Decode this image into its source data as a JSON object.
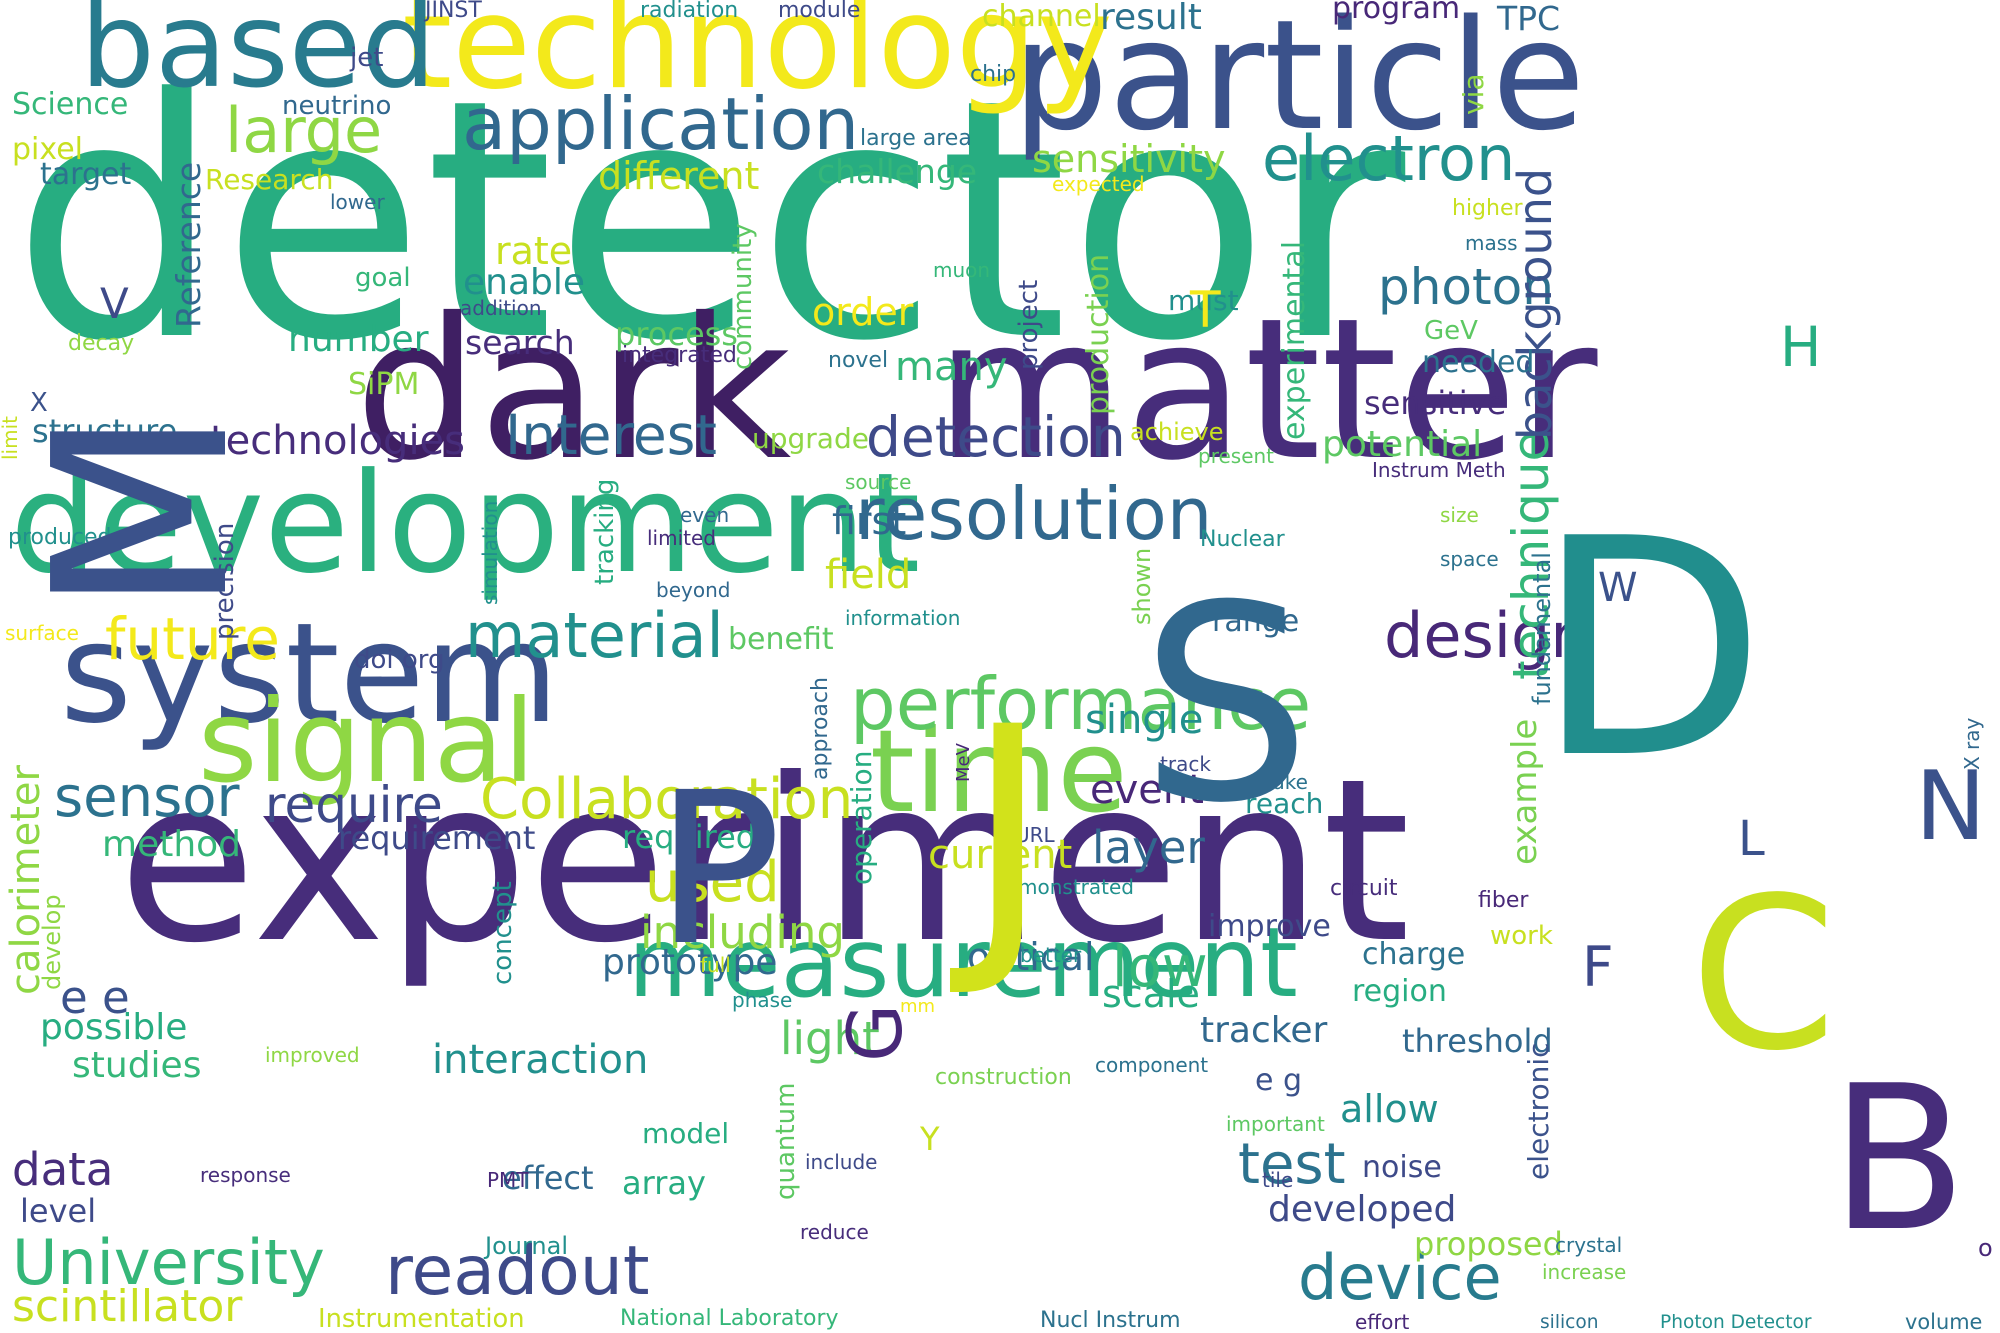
{
  "palette": {
    "dark_purple": "#472d7b",
    "indigo": "#3b528b",
    "blue": "#31688e",
    "teal": "#21908d",
    "green": "#27ad81",
    "lime": "#5dc863",
    "light_green": "#8fd744",
    "yellow": "#c8e020",
    "bright_yellow": "#f3e91b"
  },
  "words": [
    {
      "text": "detector",
      "color": "#27ad81"
    },
    {
      "text": "experiment",
      "color": "#472d7b"
    },
    {
      "text": "dark",
      "color": "#3f1f63"
    },
    {
      "text": "matter",
      "color": "#472d7b"
    },
    {
      "text": "particle",
      "color": "#3b528b"
    },
    {
      "text": "technology",
      "color": "#f3e91b"
    },
    {
      "text": "based",
      "color": "#287b8e"
    },
    {
      "text": "development",
      "color": "#2ab07f"
    },
    {
      "text": "system",
      "color": "#3b528b"
    },
    {
      "text": "measurement",
      "color": "#27ad81"
    },
    {
      "text": "time",
      "color": "#7ad151"
    },
    {
      "text": "signal",
      "color": "#8fd744"
    },
    {
      "text": "application",
      "color": "#31688e"
    },
    {
      "text": "resolution",
      "color": "#31688e"
    },
    {
      "text": "performance",
      "color": "#5dc863"
    },
    {
      "text": "electron",
      "color": "#21908d"
    },
    {
      "text": "material",
      "color": "#21908d"
    },
    {
      "text": "Collaboration",
      "color": "#c8e020"
    },
    {
      "text": "University",
      "color": "#35b779"
    },
    {
      "text": "readout",
      "color": "#3e4a89"
    },
    {
      "text": "design",
      "color": "#482878"
    },
    {
      "text": "device",
      "color": "#287b8e"
    },
    {
      "text": "large",
      "color": "#8fd744"
    },
    {
      "text": "detection",
      "color": "#3e4a89"
    },
    {
      "text": "Interest",
      "color": "#31688e"
    },
    {
      "text": "sensor",
      "color": "#2c728e"
    },
    {
      "text": "require",
      "color": "#3e4a89"
    },
    {
      "text": "future",
      "color": "#f3e91b"
    },
    {
      "text": "used",
      "color": "#c8e020"
    },
    {
      "text": "test",
      "color": "#2c728e"
    },
    {
      "text": "photon",
      "color": "#2c728e"
    },
    {
      "text": "technique",
      "color": "#35b779"
    },
    {
      "text": "background",
      "color": "#3b528b"
    },
    {
      "text": "low",
      "color": "#35b779"
    },
    {
      "text": "scintillator",
      "color": "#c8e020"
    },
    {
      "text": "calorimeter",
      "color": "#8fd744"
    },
    {
      "text": "light",
      "color": "#5dc863"
    },
    {
      "text": "including",
      "color": "#8fd744"
    },
    {
      "text": "layer",
      "color": "#31688e"
    },
    {
      "text": "interaction",
      "color": "#21908d"
    },
    {
      "text": "current",
      "color": "#c8e020"
    },
    {
      "text": "single",
      "color": "#21908d"
    },
    {
      "text": "scale",
      "color": "#27ad81"
    },
    {
      "text": "tracker",
      "color": "#31688e"
    },
    {
      "text": "allow",
      "color": "#21908d"
    },
    {
      "text": "event",
      "color": "#482878"
    },
    {
      "text": "technologies",
      "color": "#472d7b"
    },
    {
      "text": "optical",
      "color": "#31688e"
    },
    {
      "text": "field",
      "color": "#c8e020"
    },
    {
      "text": "first",
      "color": "#31688e"
    },
    {
      "text": "many",
      "color": "#35b779"
    },
    {
      "text": "order",
      "color": "#f3e91b"
    },
    {
      "text": "rate",
      "color": "#c8e020"
    },
    {
      "text": "enable",
      "color": "#21908d"
    },
    {
      "text": "different",
      "color": "#c8e020"
    },
    {
      "text": "challenge",
      "color": "#35b779"
    },
    {
      "text": "sensitivity",
      "color": "#8fd744"
    },
    {
      "text": "number",
      "color": "#27ad81"
    },
    {
      "text": "search",
      "color": "#472d7b"
    },
    {
      "text": "process",
      "color": "#5dc863"
    },
    {
      "text": "data",
      "color": "#472d7b"
    },
    {
      "text": "possible",
      "color": "#27ad81"
    },
    {
      "text": "studies",
      "color": "#35b779"
    },
    {
      "text": "method",
      "color": "#35b779"
    },
    {
      "text": "requirement",
      "color": "#3e4a89"
    },
    {
      "text": "required",
      "color": "#27ad81"
    },
    {
      "text": "prototype",
      "color": "#31688e"
    },
    {
      "text": "structure",
      "color": "#2c728e"
    },
    {
      "text": "potential",
      "color": "#5dc863"
    },
    {
      "text": "sensitive",
      "color": "#472d7b"
    },
    {
      "text": "needed",
      "color": "#2c728e"
    },
    {
      "text": "developed",
      "color": "#3e4a89"
    },
    {
      "text": "noise",
      "color": "#3e4a89"
    },
    {
      "text": "threshold",
      "color": "#31688e"
    },
    {
      "text": "region",
      "color": "#27ad81"
    },
    {
      "text": "charge",
      "color": "#2c728e"
    },
    {
      "text": "improve",
      "color": "#3e4a89"
    },
    {
      "text": "example",
      "color": "#7ad151"
    },
    {
      "text": "reach",
      "color": "#21908d"
    },
    {
      "text": "level",
      "color": "#3e4a89"
    },
    {
      "text": "effect",
      "color": "#31688e"
    },
    {
      "text": "array",
      "color": "#27ad81"
    },
    {
      "text": "model",
      "color": "#27ad81"
    },
    {
      "text": "proposed",
      "color": "#8fd744"
    },
    {
      "text": "result",
      "color": "#2c728e"
    },
    {
      "text": "program",
      "color": "#482878"
    },
    {
      "text": "TPC",
      "color": "#31688e"
    },
    {
      "text": "channel",
      "color": "#c8e020"
    },
    {
      "text": "range",
      "color": "#31688e"
    },
    {
      "text": "must",
      "color": "#21908d"
    },
    {
      "text": "upgrade",
      "color": "#8fd744"
    },
    {
      "text": "benefit",
      "color": "#5dc863"
    },
    {
      "text": "Reference",
      "color": "#31688e"
    },
    {
      "text": "production",
      "color": "#7ad151"
    },
    {
      "text": "experimental",
      "color": "#35b779"
    },
    {
      "text": "project",
      "color": "#3e4a89"
    },
    {
      "text": "community",
      "color": "#5dc863"
    },
    {
      "text": "precision",
      "color": "#3e4a89"
    },
    {
      "text": "tracking",
      "color": "#27ad81"
    },
    {
      "text": "operation",
      "color": "#27ad81"
    },
    {
      "text": "concept",
      "color": "#21908d"
    },
    {
      "text": "quantum",
      "color": "#5dc863"
    },
    {
      "text": "electronic",
      "color": "#3b528b"
    },
    {
      "text": "fundamental",
      "color": "#2c728e"
    },
    {
      "text": "shown",
      "color": "#7ad151"
    },
    {
      "text": "approach",
      "color": "#31688e"
    },
    {
      "text": "develop",
      "color": "#8fd744"
    },
    {
      "text": "simulation",
      "color": "#21908d"
    },
    {
      "text": "SiPM",
      "color": "#8fd744"
    },
    {
      "text": "Science",
      "color": "#35b779"
    },
    {
      "text": "pixel",
      "color": "#c8e020"
    },
    {
      "text": "target",
      "color": "#2c728e"
    },
    {
      "text": "Research",
      "color": "#c8e020"
    },
    {
      "text": "neutrino",
      "color": "#31688e"
    },
    {
      "text": "jet",
      "color": "#3e4a89"
    },
    {
      "text": "JINST",
      "color": "#3e4a89"
    },
    {
      "text": "radiation",
      "color": "#21908d"
    },
    {
      "text": "module",
      "color": "#3e4a89"
    },
    {
      "text": "chip",
      "color": "#2c728e"
    },
    {
      "text": "via",
      "color": "#8fd744"
    },
    {
      "text": "large area",
      "color": "#2c728e"
    },
    {
      "text": "expected",
      "color": "#f3e91b"
    },
    {
      "text": "higher",
      "color": "#c8e020"
    },
    {
      "text": "mass",
      "color": "#2c728e"
    },
    {
      "text": "lower",
      "color": "#31688e"
    },
    {
      "text": "goal",
      "color": "#35b779"
    },
    {
      "text": "muon",
      "color": "#35b779"
    },
    {
      "text": "addition",
      "color": "#3e4a89"
    },
    {
      "text": "integrated",
      "color": "#472d7b"
    },
    {
      "text": "novel",
      "color": "#2c728e"
    },
    {
      "text": "GeV",
      "color": "#5dc863"
    },
    {
      "text": "decay",
      "color": "#8fd744"
    },
    {
      "text": "limit",
      "color": "#c8e020"
    },
    {
      "text": "produced",
      "color": "#21908d"
    },
    {
      "text": "achieve",
      "color": "#c8e020"
    },
    {
      "text": "present",
      "color": "#5dc863"
    },
    {
      "text": "Instrum Meth",
      "color": "#472d7b"
    },
    {
      "text": "source",
      "color": "#5dc863"
    },
    {
      "text": "even",
      "color": "#31688e"
    },
    {
      "text": "limited",
      "color": "#472d7b"
    },
    {
      "text": "beyond",
      "color": "#31688e"
    },
    {
      "text": "Nuclear",
      "color": "#21908d"
    },
    {
      "text": "size",
      "color": "#8fd744"
    },
    {
      "text": "space",
      "color": "#2c728e"
    },
    {
      "text": "information",
      "color": "#21908d"
    },
    {
      "text": "surface",
      "color": "#f3e91b"
    },
    {
      "text": "doi org",
      "color": "#3e4a89"
    },
    {
      "text": "MeV",
      "color": "#482878"
    },
    {
      "text": "track",
      "color": "#3e4a89"
    },
    {
      "text": "make",
      "color": "#2c728e"
    },
    {
      "text": "URL",
      "color": "#3e4a89"
    },
    {
      "text": "demonstrated",
      "color": "#21908d"
    },
    {
      "text": "circuit",
      "color": "#472d7b"
    },
    {
      "text": "fiber",
      "color": "#482878"
    },
    {
      "text": "work",
      "color": "#c8e020"
    },
    {
      "text": "better",
      "color": "#21908d"
    },
    {
      "text": "full",
      "color": "#c8e020"
    },
    {
      "text": "phase",
      "color": "#21908d"
    },
    {
      "text": "mm",
      "color": "#f3e91b"
    },
    {
      "text": "improved",
      "color": "#8fd744"
    },
    {
      "text": "construction",
      "color": "#7ad151"
    },
    {
      "text": "component",
      "color": "#2c728e"
    },
    {
      "text": "e g",
      "color": "#3b528b"
    },
    {
      "text": "important",
      "color": "#5dc863"
    },
    {
      "text": "include",
      "color": "#3e4a89"
    },
    {
      "text": "response",
      "color": "#472d7b"
    },
    {
      "text": "PMT",
      "color": "#482878"
    },
    {
      "text": "tile",
      "color": "#3e4a89"
    },
    {
      "text": "Journal",
      "color": "#21908d"
    },
    {
      "text": "reduce",
      "color": "#472d7b"
    },
    {
      "text": "crystal",
      "color": "#2c728e"
    },
    {
      "text": "increase",
      "color": "#7ad151"
    },
    {
      "text": "Instrumentation",
      "color": "#c8e020"
    },
    {
      "text": "National Laboratory",
      "color": "#35b779"
    },
    {
      "text": "Nucl Instrum",
      "color": "#2c728e"
    },
    {
      "text": "effort",
      "color": "#482878"
    },
    {
      "text": "silicon",
      "color": "#2c728e"
    },
    {
      "text": "Photon Detector",
      "color": "#21908d"
    },
    {
      "text": "volume",
      "color": "#2c728e"
    },
    {
      "text": "X ray",
      "color": "#31688e"
    },
    {
      "text": "e e",
      "color": "#3b528b"
    },
    {
      "text": "M",
      "color": "#3b528b"
    },
    {
      "text": "D",
      "color": "#218e8d"
    },
    {
      "text": "S",
      "color": "#31688e"
    },
    {
      "text": "J",
      "color": "#d2e21b"
    },
    {
      "text": "P",
      "color": "#3b528b"
    },
    {
      "text": "C",
      "color": "#c8e020"
    },
    {
      "text": "B",
      "color": "#472d7b"
    },
    {
      "text": "N",
      "color": "#3b528b"
    },
    {
      "text": "G",
      "color": "#482878"
    },
    {
      "text": "T",
      "color": "#f3e91b"
    },
    {
      "text": "H",
      "color": "#27ad81"
    },
    {
      "text": "V",
      "color": "#3e4a89"
    },
    {
      "text": "W",
      "color": "#3b528b"
    },
    {
      "text": "F",
      "color": "#3e4a89"
    },
    {
      "text": "L",
      "color": "#3b528b"
    },
    {
      "text": "Y",
      "color": "#c8e020"
    },
    {
      "text": "X",
      "color": "#3b528b"
    },
    {
      "text": "o",
      "color": "#482878"
    }
  ]
}
